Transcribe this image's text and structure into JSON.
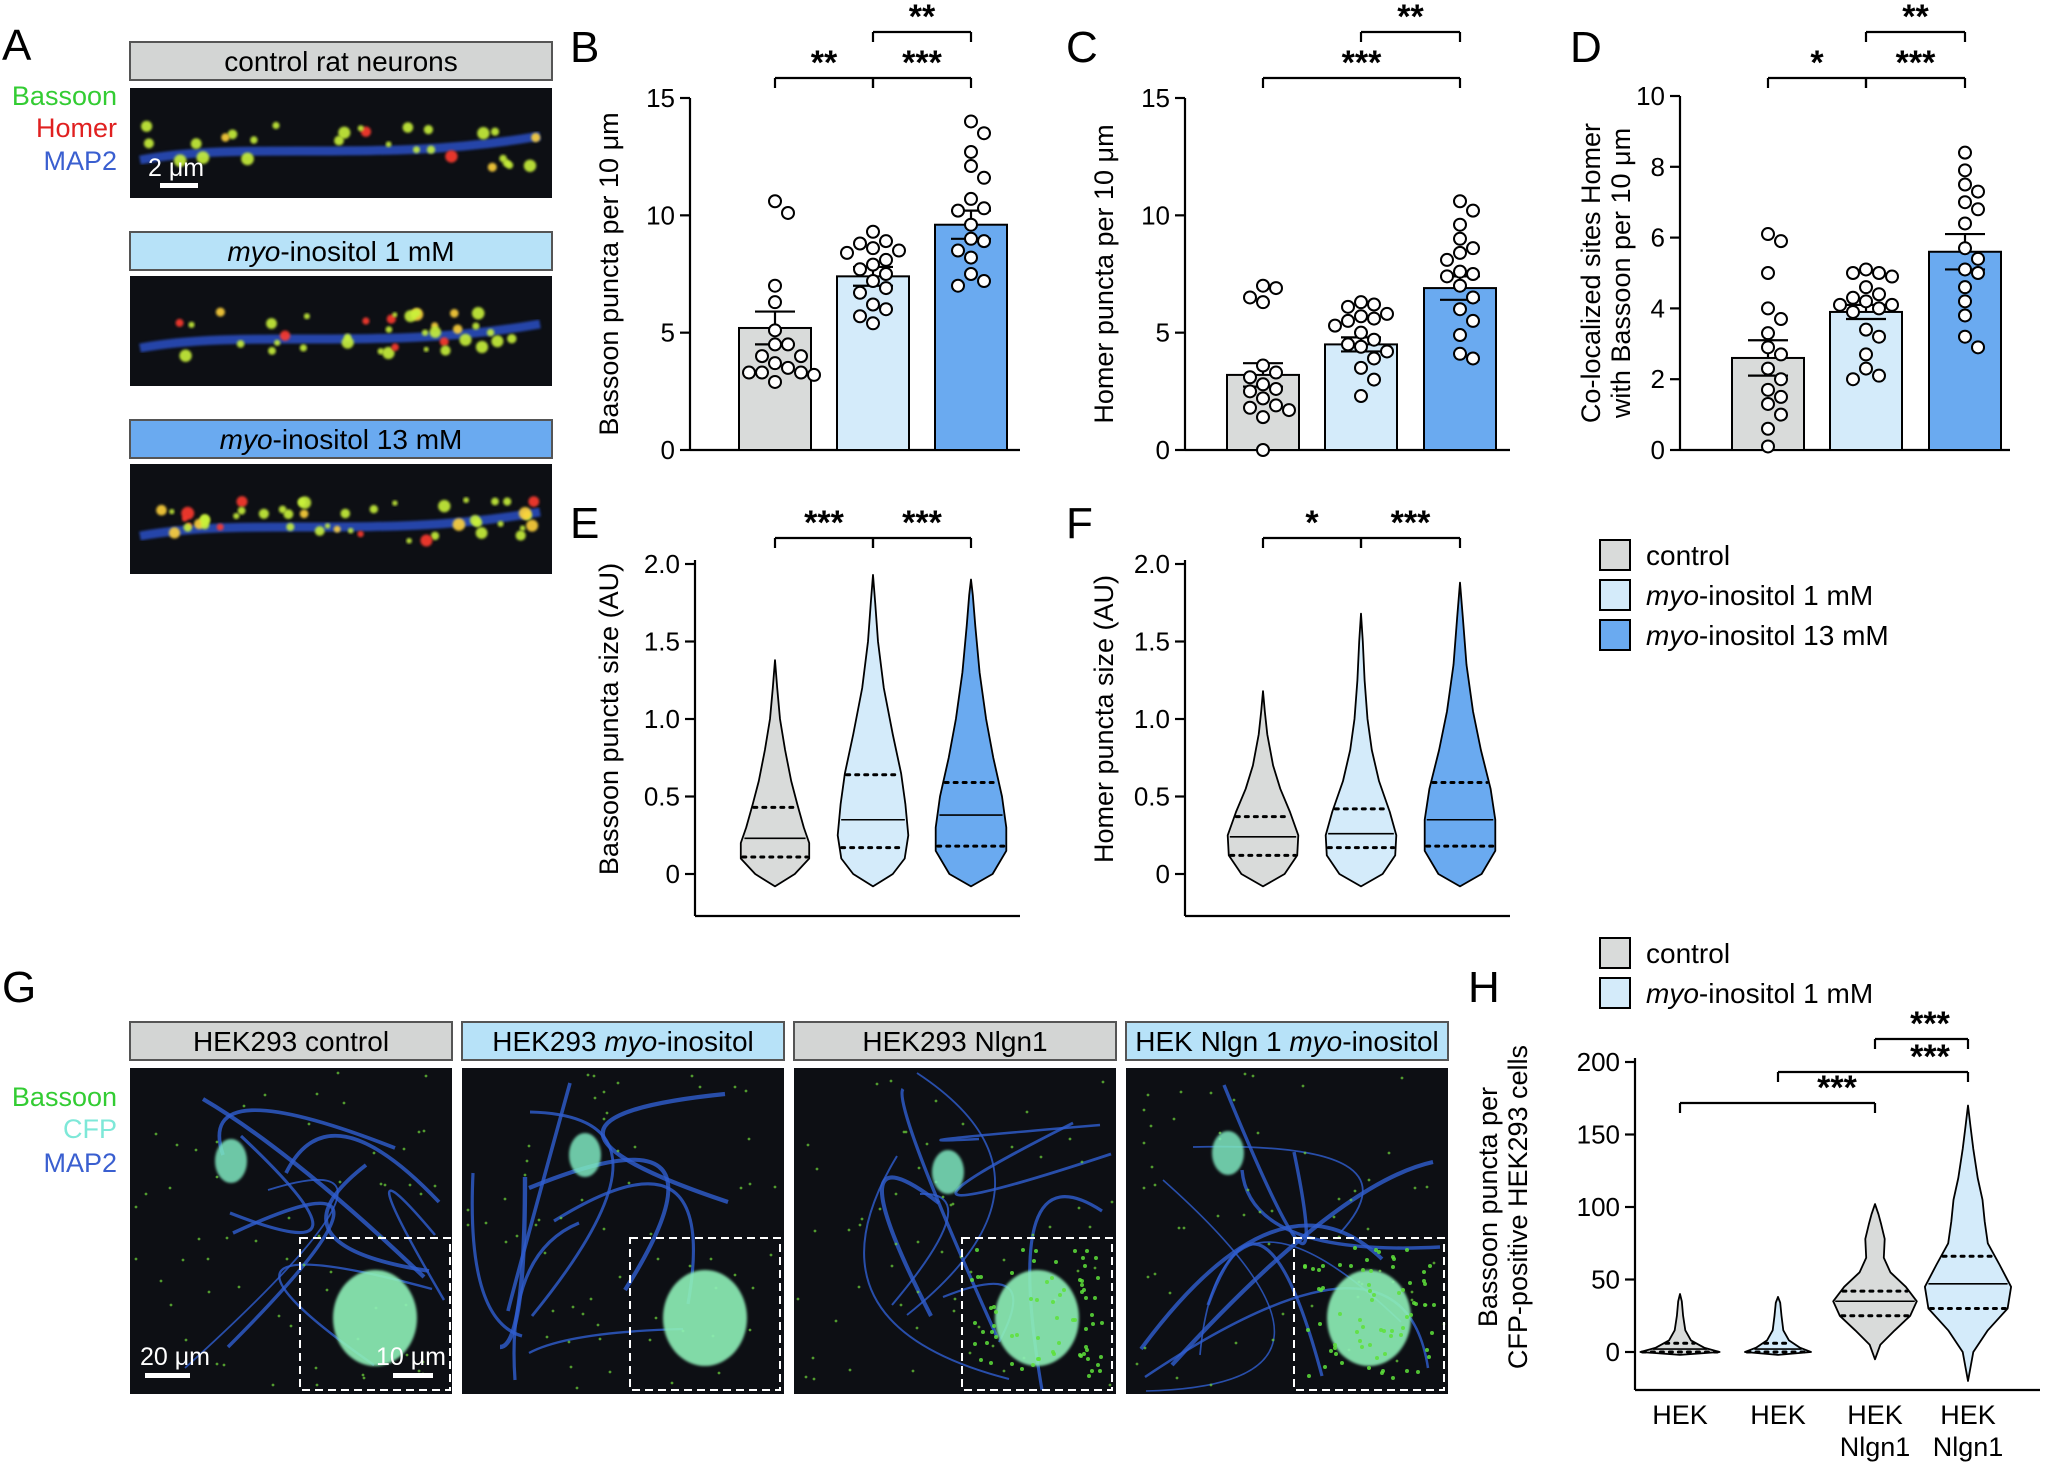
{
  "panel_letters": {
    "A": "A",
    "B": "B",
    "C": "C",
    "D": "D",
    "E": "E",
    "F": "F",
    "G": "G",
    "H": "H"
  },
  "colors": {
    "control": "#d9dbda",
    "ino1": "#d4ebfa",
    "ino13": "#6aaaf0",
    "hdr_control": "#d3d5d4",
    "hdr_ino1": "#b7e2f8",
    "hdr_ino13": "#6aaaf0"
  },
  "panelA": {
    "channels": [
      {
        "label": "Bassoon",
        "color": "#33cc33"
      },
      {
        "label": "Homer",
        "color": "#e02020"
      },
      {
        "label": "MAP2",
        "color": "#3a5fd0"
      }
    ],
    "headers": [
      {
        "prefix": "",
        "italic": "",
        "text": "control rat neurons",
        "color": "#d3d5d4"
      },
      {
        "prefix": "",
        "italic": "myo",
        "text": "-inositol 1 mM",
        "color": "#b7e2f8"
      },
      {
        "prefix": "",
        "italic": "myo",
        "text": "-inositol 13 mM",
        "color": "#6aaaf0"
      }
    ],
    "scalebar": "2 μm"
  },
  "legend_top": [
    {
      "italic": "",
      "text": "control",
      "color": "#d9dbda"
    },
    {
      "italic": "myo",
      "text": "-inositol 1 mM",
      "color": "#d4ebfa"
    },
    {
      "italic": "myo",
      "text": "-inositol 13 mM",
      "color": "#6aaaf0"
    }
  ],
  "legend_h": [
    {
      "italic": "",
      "text": "control",
      "color": "#d9dbda"
    },
    {
      "italic": "myo",
      "text": "-inositol 1 mM",
      "color": "#d4ebfa"
    }
  ],
  "panelG": {
    "channels": [
      {
        "label": "Bassoon",
        "color": "#33cc33"
      },
      {
        "label": "CFP",
        "color": "#7ee8d8"
      },
      {
        "label": "MAP2",
        "color": "#3a5fd0"
      }
    ],
    "headers": [
      {
        "pre": "HEK293 control",
        "italic": "",
        "post": "",
        "color": "#d3d5d4"
      },
      {
        "pre": "HEK293 ",
        "italic": "myo",
        "post": "-inositol",
        "color": "#b7e2f8"
      },
      {
        "pre": "HEK293 Nlgn1",
        "italic": "",
        "post": "",
        "color": "#d3d5d4"
      },
      {
        "pre": "HEK Nlgn 1 ",
        "italic": "myo",
        "post": "-inositol",
        "color": "#b7e2f8"
      }
    ],
    "scalebar_main": "20 μm",
    "scalebar_inset": "10 μm"
  },
  "chart_data": [
    {
      "id": "B",
      "type": "bar",
      "ylabel": "Bassoon puncta per 10 μm",
      "ylim": [
        0,
        15
      ],
      "yticks": [
        0,
        5,
        10,
        15
      ],
      "categories": [
        "control",
        "myo-inositol 1 mM",
        "myo-inositol 13 mM"
      ],
      "values": [
        5.2,
        7.4,
        9.6
      ],
      "sem": [
        0.7,
        0.4,
        0.6
      ],
      "points": [
        [
          10.6,
          10.1,
          7.0,
          6.3,
          5.1,
          4.5,
          4.5,
          4.0,
          4.0,
          3.7,
          3.5,
          3.3,
          3.3,
          3.3,
          3.2,
          2.9
        ],
        [
          9.3,
          8.9,
          8.8,
          8.6,
          8.5,
          8.4,
          8.1,
          7.9,
          7.7,
          7.5,
          7.2,
          6.9,
          6.7,
          6.2,
          6.0,
          5.7,
          5.4
        ],
        [
          14.0,
          13.5,
          12.7,
          12.1,
          11.6,
          10.7,
          10.3,
          10.2,
          9.6,
          9.0,
          8.9,
          8.5,
          8.2,
          7.5,
          7.2,
          7.0
        ]
      ],
      "significance": [
        {
          "from": 0,
          "to": 1,
          "label": "**",
          "level": 1
        },
        {
          "from": 1,
          "to": 2,
          "label": "***",
          "level": 1
        },
        {
          "from": 1,
          "to": 2,
          "label": "**",
          "level": 2
        }
      ]
    },
    {
      "id": "C",
      "type": "bar",
      "ylabel": "Homer puncta per 10 μm",
      "ylim": [
        0,
        15
      ],
      "yticks": [
        0,
        5,
        10,
        15
      ],
      "categories": [
        "control",
        "myo-inositol 1 mM",
        "myo-inositol 13 mM"
      ],
      "values": [
        3.2,
        4.5,
        6.9
      ],
      "sem": [
        0.5,
        0.3,
        0.5
      ],
      "points": [
        [
          7.0,
          6.9,
          6.5,
          6.3,
          3.6,
          3.3,
          3.1,
          2.8,
          2.6,
          2.5,
          2.2,
          1.9,
          1.8,
          1.7,
          1.4,
          0.0
        ],
        [
          6.3,
          6.2,
          6.1,
          5.8,
          5.7,
          5.6,
          5.5,
          5.3,
          5.0,
          4.7,
          4.5,
          4.4,
          4.2,
          3.9,
          3.5,
          3.0,
          2.3
        ],
        [
          10.6,
          10.2,
          9.6,
          9.0,
          8.6,
          8.4,
          8.1,
          7.6,
          7.5,
          7.4,
          7.0,
          6.5,
          6.0,
          5.5,
          4.9,
          4.1,
          3.9
        ]
      ],
      "significance": [
        {
          "from": 0,
          "to": 2,
          "label": "***",
          "level": 1
        },
        {
          "from": 1,
          "to": 2,
          "label": "**",
          "level": 2
        }
      ]
    },
    {
      "id": "D",
      "type": "bar",
      "ylabel": "Co-localized sites Homer with Bassoon per 10 μm",
      "ylabel_lines": [
        "Co-localized sites Homer",
        "with Bassoon per 10 μm"
      ],
      "ylim": [
        0,
        10
      ],
      "yticks": [
        0,
        2,
        4,
        6,
        8,
        10
      ],
      "categories": [
        "control",
        "myo-inositol 1 mM",
        "myo-inositol 13 mM"
      ],
      "values": [
        2.6,
        3.9,
        5.6
      ],
      "sem": [
        0.5,
        0.2,
        0.5
      ],
      "points": [
        [
          6.1,
          5.9,
          5.0,
          4.0,
          3.7,
          3.3,
          2.9,
          2.7,
          2.3,
          2.0,
          1.7,
          1.5,
          1.3,
          1.0,
          0.6,
          0.1
        ],
        [
          5.1,
          5.0,
          5.0,
          4.9,
          4.6,
          4.4,
          4.3,
          4.2,
          4.1,
          4.1,
          4.0,
          3.9,
          3.4,
          3.2,
          2.7,
          2.3,
          2.0,
          2.1
        ],
        [
          8.4,
          7.9,
          7.5,
          7.3,
          7.0,
          6.8,
          6.4,
          5.7,
          5.4,
          5.1,
          5.0,
          4.6,
          4.2,
          3.8,
          3.2,
          2.9
        ]
      ],
      "significance": [
        {
          "from": 0,
          "to": 1,
          "label": "*",
          "level": 1
        },
        {
          "from": 1,
          "to": 2,
          "label": "***",
          "level": 1
        },
        {
          "from": 1,
          "to": 2,
          "label": "**",
          "level": 2
        }
      ]
    },
    {
      "id": "E",
      "type": "violin",
      "ylabel": "Bassoon puncta size (AU)",
      "ylim": [
        0,
        2.0
      ],
      "yticks": [
        "0",
        "0.5",
        "1.0",
        "1.5",
        "2.0"
      ],
      "categories": [
        "control",
        "myo-inositol 1 mM",
        "myo-inositol 13 mM"
      ],
      "violins": [
        {
          "min": -0.08,
          "max": 1.38,
          "median": 0.23,
          "q1": 0.11,
          "q3": 0.43,
          "profile": [
            [
              -0.08,
              0.0
            ],
            [
              0.0,
              0.55
            ],
            [
              0.1,
              0.95
            ],
            [
              0.2,
              0.95
            ],
            [
              0.3,
              0.8
            ],
            [
              0.45,
              0.62
            ],
            [
              0.6,
              0.45
            ],
            [
              0.8,
              0.28
            ],
            [
              1.0,
              0.14
            ],
            [
              1.2,
              0.06
            ],
            [
              1.38,
              0.0
            ]
          ]
        },
        {
          "min": -0.08,
          "max": 1.93,
          "median": 0.35,
          "q1": 0.17,
          "q3": 0.64,
          "profile": [
            [
              -0.08,
              0.0
            ],
            [
              0.0,
              0.55
            ],
            [
              0.1,
              0.88
            ],
            [
              0.25,
              0.98
            ],
            [
              0.45,
              0.9
            ],
            [
              0.65,
              0.78
            ],
            [
              0.9,
              0.55
            ],
            [
              1.2,
              0.3
            ],
            [
              1.5,
              0.14
            ],
            [
              1.75,
              0.06
            ],
            [
              1.93,
              0.0
            ]
          ]
        },
        {
          "min": -0.08,
          "max": 1.9,
          "median": 0.38,
          "q1": 0.18,
          "q3": 0.59,
          "profile": [
            [
              -0.08,
              0.0
            ],
            [
              0.0,
              0.6
            ],
            [
              0.15,
              0.98
            ],
            [
              0.3,
              0.98
            ],
            [
              0.5,
              0.86
            ],
            [
              0.75,
              0.62
            ],
            [
              1.0,
              0.42
            ],
            [
              1.3,
              0.24
            ],
            [
              1.6,
              0.12
            ],
            [
              1.8,
              0.05
            ],
            [
              1.9,
              0.0
            ]
          ]
        }
      ],
      "significance": [
        {
          "from": 0,
          "to": 1,
          "label": "***",
          "level": 1
        },
        {
          "from": 1,
          "to": 2,
          "label": "***",
          "level": 1
        }
      ]
    },
    {
      "id": "F",
      "type": "violin",
      "ylabel": "Homer puncta size (AU)",
      "ylim": [
        0,
        2.0
      ],
      "yticks": [
        "0",
        "0.5",
        "1.0",
        "1.5",
        "2.0"
      ],
      "categories": [
        "control",
        "myo-inositol 1 mM",
        "myo-inositol 13 mM"
      ],
      "violins": [
        {
          "min": -0.08,
          "max": 1.18,
          "median": 0.24,
          "q1": 0.12,
          "q3": 0.37,
          "profile": [
            [
              -0.08,
              0.0
            ],
            [
              0.0,
              0.6
            ],
            [
              0.12,
              0.95
            ],
            [
              0.25,
              0.98
            ],
            [
              0.4,
              0.75
            ],
            [
              0.55,
              0.48
            ],
            [
              0.7,
              0.28
            ],
            [
              0.9,
              0.12
            ],
            [
              1.05,
              0.05
            ],
            [
              1.18,
              0.0
            ]
          ]
        },
        {
          "min": -0.08,
          "max": 1.68,
          "median": 0.26,
          "q1": 0.17,
          "q3": 0.42,
          "profile": [
            [
              -0.08,
              0.0
            ],
            [
              0.0,
              0.6
            ],
            [
              0.12,
              0.95
            ],
            [
              0.25,
              0.98
            ],
            [
              0.4,
              0.8
            ],
            [
              0.6,
              0.5
            ],
            [
              0.8,
              0.3
            ],
            [
              1.0,
              0.18
            ],
            [
              1.25,
              0.1
            ],
            [
              1.5,
              0.05
            ],
            [
              1.68,
              0.0
            ]
          ]
        },
        {
          "min": -0.08,
          "max": 1.88,
          "median": 0.35,
          "q1": 0.18,
          "q3": 0.59,
          "profile": [
            [
              -0.08,
              0.0
            ],
            [
              0.0,
              0.6
            ],
            [
              0.15,
              0.98
            ],
            [
              0.35,
              0.98
            ],
            [
              0.55,
              0.85
            ],
            [
              0.8,
              0.58
            ],
            [
              1.05,
              0.36
            ],
            [
              1.35,
              0.18
            ],
            [
              1.65,
              0.08
            ],
            [
              1.88,
              0.0
            ]
          ]
        }
      ],
      "significance": [
        {
          "from": 0,
          "to": 1,
          "label": "*",
          "level": 1
        },
        {
          "from": 1,
          "to": 2,
          "label": "***",
          "level": 1
        }
      ]
    },
    {
      "id": "H",
      "type": "violin",
      "ylabel": "Bassoon puncta per CFP-positive HEK293 cells",
      "ylabel_lines": [
        "Bassoon puncta per",
        "CFP-positive HEK293 cells"
      ],
      "ylim": [
        0,
        200
      ],
      "yticks": [
        "0",
        "50",
        "100",
        "150",
        "200"
      ],
      "categories": [
        [
          "HEK"
        ],
        [
          "HEK"
        ],
        [
          "HEK",
          "Nlgn1"
        ],
        [
          "HEK",
          "Nlgn1"
        ]
      ],
      "violins": [
        {
          "min": -2,
          "max": 40,
          "median": 2,
          "q1": 0,
          "q3": 6,
          "profile": [
            [
              -2,
              0.0
            ],
            [
              0,
              0.9
            ],
            [
              3,
              0.55
            ],
            [
              8,
              0.25
            ],
            [
              15,
              0.12
            ],
            [
              25,
              0.07
            ],
            [
              35,
              0.04
            ],
            [
              40,
              0.0
            ]
          ]
        },
        {
          "min": -2,
          "max": 38,
          "median": 2,
          "q1": 0,
          "q3": 6,
          "profile": [
            [
              -2,
              0.0
            ],
            [
              0,
              0.75
            ],
            [
              3,
              0.5
            ],
            [
              8,
              0.25
            ],
            [
              15,
              0.12
            ],
            [
              25,
              0.08
            ],
            [
              34,
              0.05
            ],
            [
              38,
              0.0
            ]
          ]
        },
        {
          "min": -5,
          "max": 102,
          "median": 35,
          "q1": 25,
          "q3": 42,
          "profile": [
            [
              -5,
              0.0
            ],
            [
              5,
              0.12
            ],
            [
              15,
              0.45
            ],
            [
              25,
              0.8
            ],
            [
              35,
              0.95
            ],
            [
              45,
              0.7
            ],
            [
              55,
              0.35
            ],
            [
              65,
              0.2
            ],
            [
              78,
              0.22
            ],
            [
              88,
              0.14
            ],
            [
              95,
              0.08
            ],
            [
              102,
              0.0
            ]
          ]
        },
        {
          "min": -20,
          "max": 170,
          "median": 47,
          "q1": 30,
          "q3": 66,
          "profile": [
            [
              -20,
              0.0
            ],
            [
              0,
              0.12
            ],
            [
              15,
              0.45
            ],
            [
              30,
              0.9
            ],
            [
              45,
              0.98
            ],
            [
              60,
              0.72
            ],
            [
              75,
              0.45
            ],
            [
              90,
              0.38
            ],
            [
              105,
              0.33
            ],
            [
              120,
              0.22
            ],
            [
              140,
              0.12
            ],
            [
              155,
              0.06
            ],
            [
              170,
              0.0
            ]
          ]
        }
      ],
      "significance": [
        {
          "from": 0,
          "to": 2,
          "label": "***",
          "level": 1
        },
        {
          "from": 1,
          "to": 3,
          "label": "***",
          "level": 2
        },
        {
          "from": 2,
          "to": 3,
          "label": "***",
          "level": 3
        }
      ]
    }
  ]
}
